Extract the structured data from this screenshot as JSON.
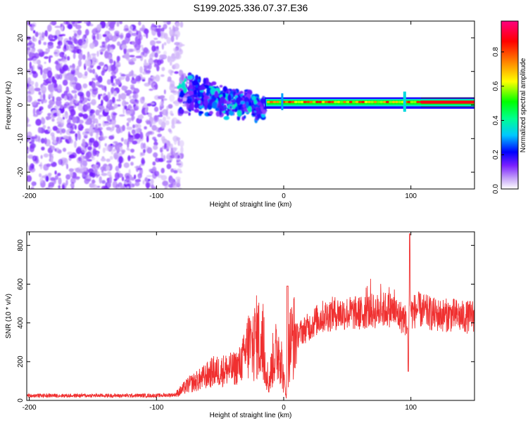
{
  "figure": {
    "title": "S199.2025.336.07.37.E36"
  },
  "chart_data": [
    {
      "type": "heatmap",
      "name": "spectrogram",
      "xlabel": "Height of straight line (km)",
      "ylabel": "Frequency (Hz)",
      "xlim": [
        -202,
        150
      ],
      "ylim": [
        -25,
        25
      ],
      "x_ticks": [
        -200,
        -100,
        0,
        100
      ],
      "y_ticks": [
        -20,
        -10,
        0,
        10,
        20
      ],
      "colorbar": {
        "label": "Normalized spectral amplitude",
        "ticks": [
          "0.0",
          "0.2",
          "0.4",
          "0.6",
          "0.8"
        ],
        "tick_values": [
          0.0,
          0.2,
          0.4,
          0.6,
          0.8
        ],
        "range": [
          0,
          0.98
        ],
        "colormap": [
          "#ffffff",
          "#b090f0",
          "#6a00ff",
          "#0000ff",
          "#00c0ff",
          "#00ff80",
          "#00ff00",
          "#ffff00",
          "#ff8000",
          "#ff0000",
          "#ff0080"
        ]
      },
      "regions": [
        {
          "x_range": [
            -202,
            -82
          ],
          "f_range": [
            -25,
            25
          ],
          "level": "noise 0.05-0.3"
        },
        {
          "x_range": [
            -82,
            -15
          ],
          "f_range": [
            -9,
            9
          ],
          "level": "scattered 0.2-0.6"
        },
        {
          "x_range": [
            -15,
            150
          ],
          "f_range": [
            -1,
            2
          ],
          "level": "narrow band centered ~1 Hz, peak 0.8-0.98"
        }
      ]
    },
    {
      "type": "line",
      "name": "snr",
      "xlabel": "Height of straight line (km)",
      "ylabel": "SNR (10 * v/v)",
      "xlim": [
        -202,
        150
      ],
      "ylim": [
        0,
        870
      ],
      "x_ticks": [
        -200,
        -100,
        0,
        100
      ],
      "y_ticks": [
        0,
        200,
        400,
        600,
        800
      ],
      "color": "#f03030",
      "series": [
        {
          "name": "SNR",
          "x": [
            -202,
            -190,
            -180,
            -170,
            -160,
            -150,
            -140,
            -130,
            -120,
            -110,
            -100,
            -90,
            -85,
            -80,
            -75,
            -70,
            -65,
            -60,
            -55,
            -50,
            -45,
            -40,
            -35,
            -30,
            -27,
            -25,
            -22,
            -20,
            -18,
            -15,
            -13,
            -12,
            -10,
            -8,
            -5,
            -3,
            0,
            2,
            3,
            5,
            8,
            10,
            15,
            20,
            25,
            30,
            35,
            40,
            45,
            50,
            55,
            60,
            65,
            70,
            75,
            80,
            85,
            90,
            95,
            97,
            98,
            99,
            100,
            105,
            110,
            115,
            120,
            125,
            130,
            135,
            140,
            145,
            150
          ],
          "y": [
            25,
            25,
            25,
            25,
            25,
            25,
            25,
            25,
            25,
            25,
            25,
            28,
            30,
            55,
            80,
            95,
            110,
            130,
            150,
            150,
            160,
            160,
            180,
            240,
            300,
            260,
            320,
            330,
            280,
            200,
            150,
            80,
            150,
            230,
            250,
            280,
            100,
            30,
            180,
            300,
            330,
            330,
            360,
            380,
            410,
            430,
            440,
            450,
            450,
            450,
            450,
            450,
            460,
            460,
            460,
            470,
            470,
            440,
            420,
            400,
            200,
            700,
            450,
            470,
            460,
            450,
            440,
            440,
            440,
            440,
            430,
            430,
            440
          ]
        }
      ]
    }
  ]
}
